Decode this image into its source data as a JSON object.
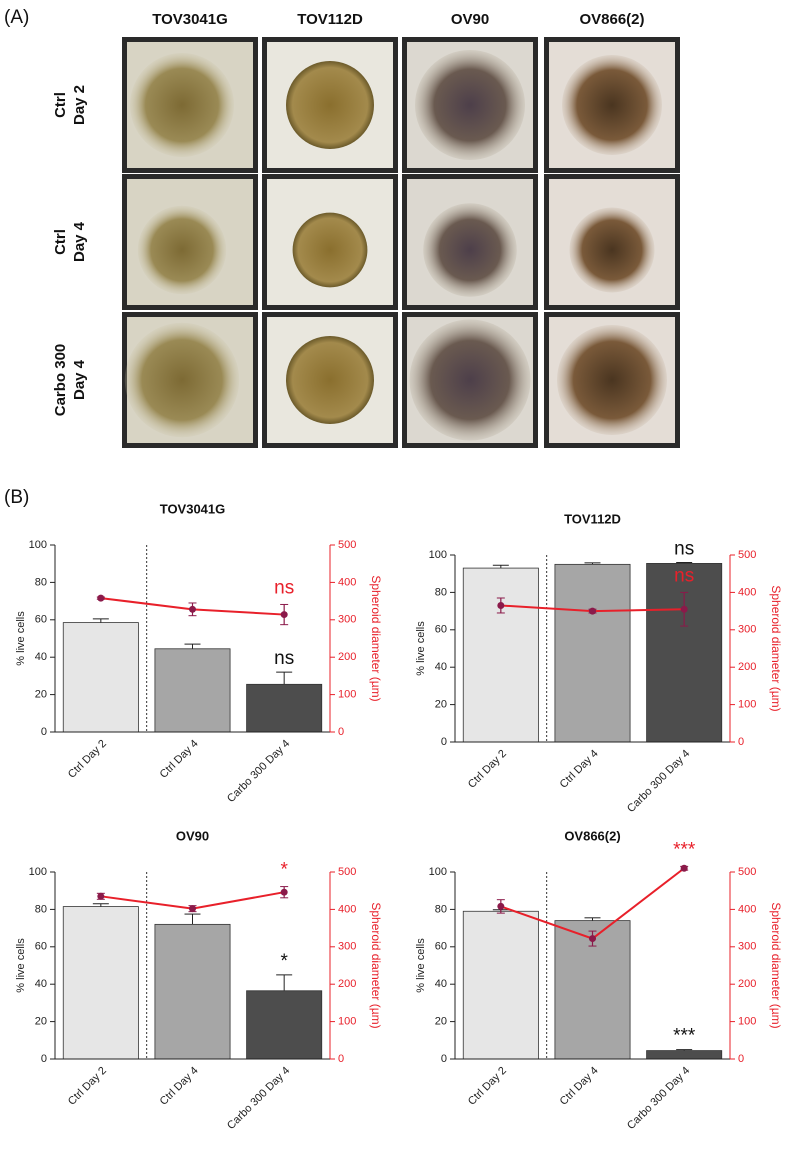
{
  "panelA": {
    "label": "(A)",
    "columns": [
      "TOV3041G",
      "TOV112D",
      "OV90",
      "OV866(2)"
    ],
    "rows": [
      [
        "Ctrl",
        "Day 2"
      ],
      [
        "Ctrl",
        "Day 4"
      ],
      [
        "Carbo 300",
        "Day 4"
      ]
    ]
  },
  "panelB": {
    "label": "(B)"
  },
  "chart_data": [
    {
      "type": "bar",
      "title": "TOV3041G",
      "categories": [
        "Ctrl Day 2",
        "Ctrl Day 4",
        "Carbo 300 Day 4"
      ],
      "ylabel": "% live cells",
      "y2label": "Spheroid diameter (µm)",
      "ylim": [
        0,
        100
      ],
      "yticks": [
        0,
        20,
        40,
        60,
        80,
        100
      ],
      "y2lim": [
        0,
        500
      ],
      "y2ticks": [
        0,
        100,
        200,
        300,
        400,
        500
      ],
      "series": [
        {
          "colors": [
            "#e6e6e6",
            "#a6a6a6",
            "#4d4d4d"
          ],
          "values": [
            58.5,
            44.5,
            25.5
          ],
          "errors": [
            2,
            2.5,
            6.5
          ]
        },
        {
          "axis": "y2",
          "color": "#e8202a",
          "values": [
            358,
            328,
            314
          ],
          "errors": [
            3,
            17,
            27
          ]
        }
      ],
      "annotations": {
        "bar": {
          "text": "ns",
          "color": "#111111"
        },
        "line": {
          "text": "ns",
          "color": "#e8202a"
        }
      }
    },
    {
      "type": "bar",
      "title": "TOV112D",
      "categories": [
        "Ctrl Day 2",
        "Ctrl Day 4",
        "Carbo 300 Day 4"
      ],
      "ylabel": "% live cells",
      "y2label": "Spheroid diameter (µm)",
      "ylim": [
        0,
        100
      ],
      "yticks": [
        0,
        20,
        40,
        60,
        80,
        100
      ],
      "y2lim": [
        0,
        500
      ],
      "y2ticks": [
        0,
        100,
        200,
        300,
        400,
        500
      ],
      "series": [
        {
          "colors": [
            "#e6e6e6",
            "#a6a6a6",
            "#4d4d4d"
          ],
          "values": [
            93,
            95,
            95.5
          ],
          "errors": [
            1.5,
            0.8,
            0.5
          ]
        },
        {
          "axis": "y2",
          "color": "#e8202a",
          "values": [
            365,
            350,
            355
          ],
          "errors": [
            20,
            5,
            45
          ]
        }
      ],
      "annotations": {
        "bar": {
          "text": "ns",
          "color": "#111111"
        },
        "line": {
          "text": "ns",
          "color": "#e8202a"
        }
      }
    },
    {
      "type": "bar",
      "title": "OV90",
      "categories": [
        "Ctrl Day 2",
        "Ctrl Day 4",
        "Carbo 300 Day 4"
      ],
      "ylabel": "% live cells",
      "y2label": "Spheroid diameter (µm)",
      "ylim": [
        0,
        100
      ],
      "yticks": [
        0,
        20,
        40,
        60,
        80,
        100
      ],
      "y2lim": [
        0,
        500
      ],
      "y2ticks": [
        0,
        100,
        200,
        300,
        400,
        500
      ],
      "series": [
        {
          "colors": [
            "#e6e6e6",
            "#a6a6a6",
            "#4d4d4d"
          ],
          "values": [
            81.5,
            72,
            36.5
          ],
          "errors": [
            1.5,
            5.5,
            8.5
          ]
        },
        {
          "axis": "y2",
          "color": "#e8202a",
          "values": [
            435,
            402,
            446
          ],
          "errors": [
            8,
            8,
            15
          ]
        }
      ],
      "annotations": {
        "bar": {
          "text": "*",
          "color": "#111111"
        },
        "line": {
          "text": "*",
          "color": "#e8202a"
        }
      }
    },
    {
      "type": "bar",
      "title": "OV866(2)",
      "categories": [
        "Ctrl Day 2",
        "Ctrl Day 4",
        "Carbo 300 Day 4"
      ],
      "ylabel": "% live cells",
      "y2label": "Spheroid diameter (µm)",
      "ylim": [
        0,
        100
      ],
      "yticks": [
        0,
        20,
        40,
        60,
        80,
        100
      ],
      "y2lim": [
        0,
        500
      ],
      "y2ticks": [
        0,
        100,
        200,
        300,
        400,
        500
      ],
      "series": [
        {
          "colors": [
            "#e6e6e6",
            "#a6a6a6",
            "#4d4d4d"
          ],
          "values": [
            79,
            74,
            4.5
          ],
          "errors": [
            0.8,
            1.5,
            0.5
          ]
        },
        {
          "axis": "y2",
          "color": "#e8202a",
          "values": [
            408,
            322,
            510
          ],
          "errors": [
            18,
            20,
            5
          ]
        }
      ],
      "annotations": {
        "bar": {
          "text": "***",
          "color": "#111111"
        },
        "line": {
          "text": "***",
          "color": "#e8202a"
        }
      }
    }
  ]
}
